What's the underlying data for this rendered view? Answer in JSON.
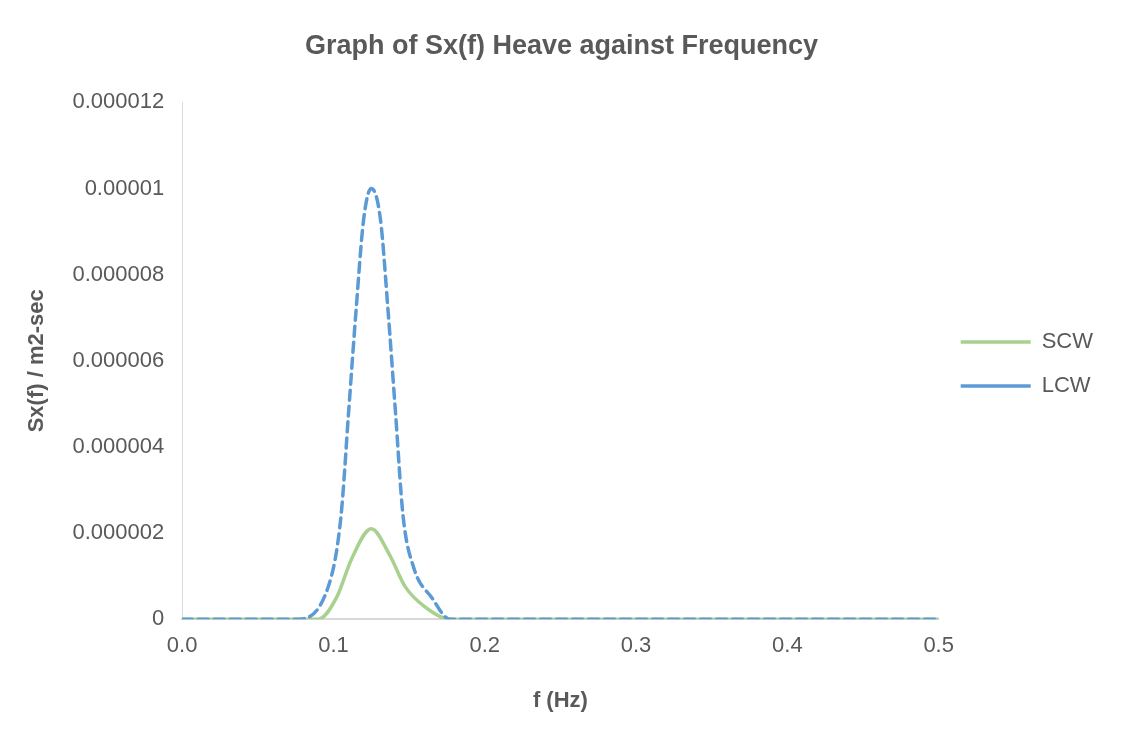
{
  "chart_data": {
    "type": "line",
    "title": "Graph of Sx(f) Heave against Frequency",
    "xlabel": "f (Hz)",
    "ylabel": "Sx(f) / m2-sec",
    "xlim": [
      0,
      0.5
    ],
    "xticks": [
      {
        "value": 0,
        "label": "0.0"
      },
      {
        "value": 0.1,
        "label": "0.1"
      },
      {
        "value": 0.2,
        "label": "0.2"
      },
      {
        "value": 0.3,
        "label": "0.3"
      },
      {
        "value": 0.4,
        "label": "0.4"
      },
      {
        "value": 0.5,
        "label": "0.5"
      }
    ],
    "ylim": [
      0,
      1.2e-05
    ],
    "yticks": [
      0,
      {
        "value": 2e-06,
        "label": "0.000002"
      },
      {
        "value": 4e-06,
        "label": "0.000004"
      },
      {
        "value": 6e-06,
        "label": "0.000006"
      },
      {
        "value": 8e-06,
        "label": "0.000008"
      },
      {
        "value": 1e-05,
        "label": "0.00001"
      },
      {
        "value": 1.2e-05,
        "label": "0.000012"
      }
    ],
    "grid": false,
    "legend": "right",
    "marker": "none",
    "series": [
      {
        "name": "SCW",
        "color": "#a9d18e",
        "line_style": "solid",
        "x": [
          0,
          0.05,
          0.09,
          0.102,
          0.112,
          0.125,
          0.137,
          0.1475,
          0.16,
          0.1775,
          0.2,
          0.3,
          0.4,
          0.5
        ],
        "values": [
          0,
          0,
          0,
          5e-07,
          1.4e-06,
          2.1e-06,
          1.5e-06,
          7.5e-07,
          3e-07,
          0,
          0,
          0,
          0,
          0
        ]
      },
      {
        "name": "LCW",
        "color": "#5b9bd5",
        "line_style": "dashed",
        "x": [
          0,
          0.05,
          0.075,
          0.097,
          0.105,
          0.11,
          0.115,
          0.12,
          0.125,
          0.131,
          0.136,
          0.141,
          0.146,
          0.153,
          0.165,
          0.177,
          0.2,
          0.3,
          0.4,
          0.5
        ],
        "values": [
          0,
          0,
          0,
          8e-07,
          2.4e-06,
          4.8e-06,
          7.2e-06,
          9.3e-06,
          1e-05,
          9.3e-06,
          7.2e-06,
          4.8e-06,
          2.4e-06,
          1.2e-06,
          5e-07,
          0,
          0,
          0,
          0,
          0
        ]
      }
    ]
  }
}
